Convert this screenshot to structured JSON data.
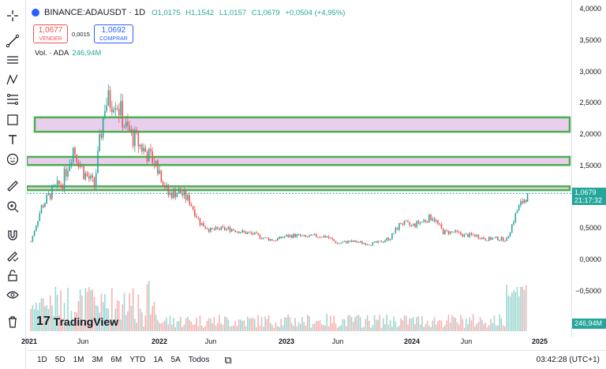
{
  "legend": {
    "symbol": "BINANCE:ADAUSDT · 1D",
    "open": "O1,0175",
    "high": "H1,1542",
    "low": "L1,0157",
    "close": "C1,0679",
    "change": "+0,0504 (+4,95%)"
  },
  "trade": {
    "sell_price": "1,0677",
    "sell_label": "VENDER",
    "spread": "0,0015",
    "buy_price": "1,0692",
    "buy_label": "COMPRAR"
  },
  "volume": {
    "label": "Vol. · ADA",
    "value": "246,94M"
  },
  "price_scale": [
    "4,0000",
    "3,5000",
    "3,0000",
    "2,5000",
    "2,0000",
    "1,5000",
    "1,0000",
    "0,5000",
    "0,0000",
    "−0,5000"
  ],
  "last_price": {
    "price": "1,0679",
    "countdown": "21:17:32"
  },
  "volume_tag": "246,94M",
  "time_axis": [
    {
      "label": "2021",
      "bold": true
    },
    {
      "label": "Jun",
      "bold": false
    },
    {
      "label": "2022",
      "bold": true
    },
    {
      "label": "Jun",
      "bold": false
    },
    {
      "label": "2023",
      "bold": true
    },
    {
      "label": "Jun",
      "bold": false
    },
    {
      "label": "2024",
      "bold": true
    },
    {
      "label": "Jun",
      "bold": false
    },
    {
      "label": "2025",
      "bold": true
    }
  ],
  "ranges": [
    "1D",
    "5D",
    "1M",
    "3M",
    "6M",
    "YTD",
    "1A",
    "5A",
    "Todos"
  ],
  "clock": "03:42:28 (UTC+1)",
  "logo_text": "TradingView",
  "colors": {
    "up": "#26a69a",
    "down": "#ef5350",
    "zone_fill": "#e1bee7",
    "zone_border": "#4caf50",
    "accent": "#2962ff"
  },
  "chart_data": {
    "type": "candlestick",
    "series": [
      {
        "name": "ADAUSDT",
        "x": [
          "2021-01",
          "2021-02",
          "2021-03",
          "2021-04",
          "2021-05",
          "2021-06",
          "2021-07",
          "2021-08",
          "2021-09",
          "2021-10",
          "2021-11",
          "2021-12",
          "2022-01",
          "2022-02",
          "2022-03",
          "2022-04",
          "2022-05",
          "2022-06",
          "2022-07",
          "2022-08",
          "2022-09",
          "2022-10",
          "2022-11",
          "2022-12",
          "2023-01",
          "2023-02",
          "2023-03",
          "2023-04",
          "2023-05",
          "2023-06",
          "2023-07",
          "2023-08",
          "2023-09",
          "2023-10",
          "2023-11",
          "2023-12",
          "2024-01",
          "2024-02",
          "2024-03",
          "2024-04",
          "2024-05",
          "2024-06",
          "2024-07",
          "2024-08",
          "2024-09",
          "2024-10",
          "2024-11",
          "2024-12"
        ],
        "close": [
          0.3,
          0.85,
          1.1,
          1.25,
          1.8,
          1.4,
          1.2,
          2.5,
          2.6,
          2.1,
          1.9,
          1.7,
          1.5,
          1.05,
          1.1,
          0.95,
          0.6,
          0.48,
          0.5,
          0.5,
          0.45,
          0.42,
          0.36,
          0.32,
          0.38,
          0.4,
          0.37,
          0.39,
          0.38,
          0.27,
          0.3,
          0.29,
          0.26,
          0.29,
          0.36,
          0.6,
          0.55,
          0.62,
          0.7,
          0.45,
          0.45,
          0.4,
          0.4,
          0.34,
          0.35,
          0.33,
          0.8,
          1.0679
        ]
      }
    ],
    "ylim": [
      -0.7,
      4.0
    ],
    "zones": [
      {
        "from": 2.05,
        "to": 2.28
      },
      {
        "from": 1.52,
        "to": 1.65
      },
      {
        "from": 1.12,
        "to": 1.18
      }
    ]
  }
}
